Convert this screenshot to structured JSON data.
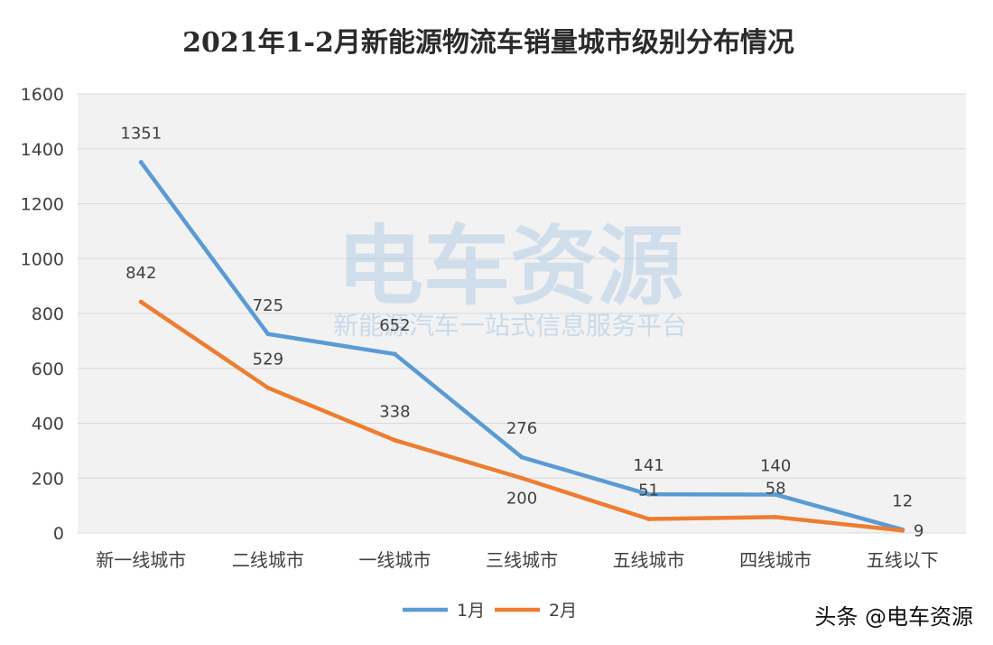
{
  "chart_data": {
    "type": "line",
    "title": "2021年1-2月新能源物流车销量城市级别分布情况",
    "categories": [
      "新一线城市",
      "二线城市",
      "一线城市",
      "三线城市",
      "五线城市",
      "四线城市",
      "五线以下"
    ],
    "series": [
      {
        "name": "1月",
        "values": [
          1351,
          725,
          652,
          276,
          141,
          140,
          12
        ],
        "color": "#5b9bd5"
      },
      {
        "name": "2月",
        "values": [
          842,
          529,
          338,
          200,
          51,
          58,
          9
        ],
        "color": "#ed7d31"
      }
    ],
    "ylim": [
      0,
      1600
    ],
    "yticks": [
      "0",
      "200",
      "400",
      "600",
      "800",
      "1000",
      "1200",
      "1400",
      "1600"
    ],
    "grid": true,
    "legend": "bottom",
    "plot_background": "#f2f2f2",
    "grid_color": "#d9d9d9"
  },
  "watermark": {
    "main": "电车资源",
    "tagline": "新能源汽车一站式信息服务平台"
  },
  "footer": {
    "source": "头条 @电车资源"
  }
}
